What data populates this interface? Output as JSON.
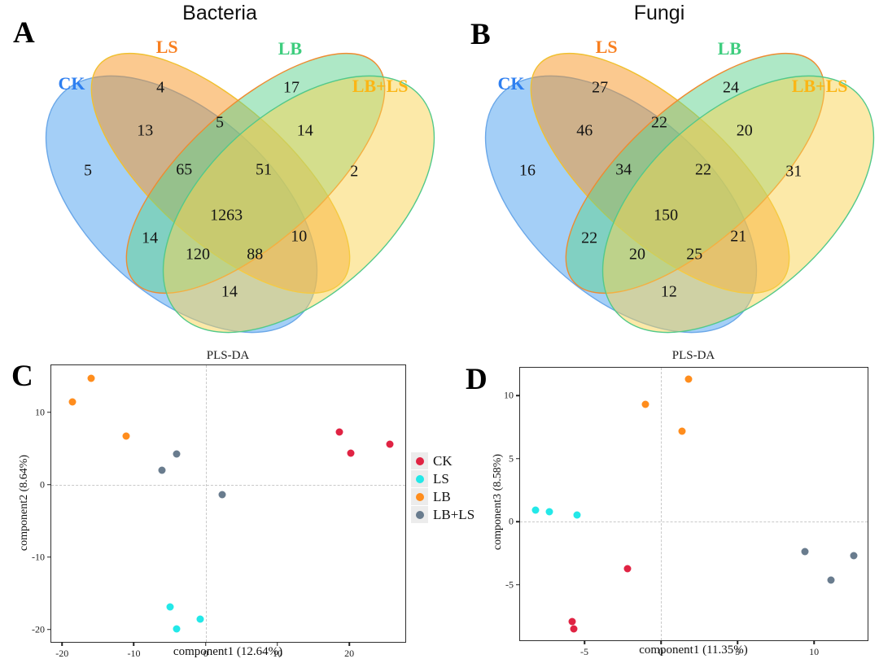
{
  "chart_data": [
    {
      "type": "venn4",
      "panel_letter": "A",
      "title": "Bacteria",
      "sets": [
        {
          "id": "ck",
          "label": "CK",
          "label_color": "#2e7ff0",
          "fill": "#4aa0ef",
          "stroke": "#6aa7e8"
        },
        {
          "id": "ls",
          "label": "LS",
          "label_color": "#f87f1f",
          "fill": "#f79320",
          "stroke": "#f0c030"
        },
        {
          "id": "lb",
          "label": "LB",
          "label_color": "#3ecd7e",
          "fill": "#5dd18d",
          "stroke": "#ef8b30"
        },
        {
          "id": "lbls",
          "label": "LB+LS",
          "label_color": "#fbb515",
          "fill": "#f9d351",
          "stroke": "#52c98a"
        }
      ],
      "regions": {
        "ck_only": 5,
        "ls_only": 4,
        "lb_only": 17,
        "lbls_only": 2,
        "ck_ls": 13,
        "ls_lb": 5,
        "lb_lbls": 14,
        "ck_lb": 14,
        "ls_lbls": 10,
        "ck_lbls": 14,
        "ck_ls_lb": 65,
        "ls_lb_lbls": 51,
        "ck_lb_lbls": 120,
        "ck_ls_lbls": 88,
        "all_four": 1263
      }
    },
    {
      "type": "venn4",
      "panel_letter": "B",
      "title": "Fungi",
      "sets": [
        {
          "id": "ck",
          "label": "CK",
          "label_color": "#2e7ff0",
          "fill": "#4aa0ef",
          "stroke": "#6aa7e8"
        },
        {
          "id": "ls",
          "label": "LS",
          "label_color": "#f87f1f",
          "fill": "#f79320",
          "stroke": "#f0c030"
        },
        {
          "id": "lb",
          "label": "LB",
          "label_color": "#3ecd7e",
          "fill": "#5dd18d",
          "stroke": "#ef8b30"
        },
        {
          "id": "lbls",
          "label": "LB+LS",
          "label_color": "#fbb515",
          "fill": "#f9d351",
          "stroke": "#52c98a"
        }
      ],
      "regions": {
        "ck_only": 16,
        "ls_only": 27,
        "lb_only": 24,
        "lbls_only": 31,
        "ck_ls": 46,
        "ls_lb": 22,
        "lb_lbls": 20,
        "ck_lb": 22,
        "ls_lbls": 21,
        "ck_lbls": 12,
        "ck_ls_lb": 34,
        "ls_lb_lbls": 22,
        "ck_lb_lbls": 20,
        "ck_ls_lbls": 25,
        "all_four": 150
      }
    },
    {
      "type": "scatter",
      "panel_letter": "C",
      "title": "PLS-DA",
      "xlabel": "component1 (12.64%)",
      "ylabel": "component2 (8.64%)",
      "xlim": [
        -21.5,
        27.8
      ],
      "ylim": [
        -21.7,
        16.5
      ],
      "xticks": [
        -20,
        -10,
        0,
        10,
        20
      ],
      "yticks": [
        -20,
        -10,
        0,
        10
      ],
      "grid": "dashed zero lines",
      "legend_position": "right",
      "series": [
        {
          "name": "CK",
          "color": "#e02343",
          "points": [
            [
              18.6,
              7.3
            ],
            [
              20.2,
              4.4
            ],
            [
              25.6,
              5.6
            ]
          ]
        },
        {
          "name": "LS",
          "color": "#23e8e8",
          "points": [
            [
              -4.9,
              -16.9
            ],
            [
              -4.1,
              -19.9
            ],
            [
              -0.8,
              -18.6
            ]
          ]
        },
        {
          "name": "LB",
          "color": "#ff8d1d",
          "points": [
            [
              -16.0,
              14.7
            ],
            [
              -18.5,
              11.4
            ],
            [
              -11.1,
              6.7
            ]
          ]
        },
        {
          "name": "LB+LS",
          "color": "#697c8e",
          "points": [
            [
              -4.1,
              4.3
            ],
            [
              -6.1,
              2.0
            ],
            [
              2.3,
              -1.4
            ]
          ]
        }
      ]
    },
    {
      "type": "scatter",
      "panel_letter": "D",
      "title": "PLS-DA",
      "xlabel": "component1 (11.35%)",
      "ylabel": "component3 (8.58%)",
      "xlim": [
        -9.2,
        13.5
      ],
      "ylim": [
        -9.4,
        12.2
      ],
      "xticks": [
        -5,
        0,
        5,
        10
      ],
      "yticks": [
        -5,
        0,
        5,
        10
      ],
      "grid": "dashed zero lines",
      "legend_position": "none",
      "series": [
        {
          "name": "CK",
          "color": "#e02343",
          "points": [
            [
              -2.2,
              -3.7
            ],
            [
              -5.8,
              -7.9
            ],
            [
              -5.7,
              -8.5
            ]
          ]
        },
        {
          "name": "LS",
          "color": "#23e8e8",
          "points": [
            [
              -8.2,
              0.9
            ],
            [
              -7.3,
              0.8
            ],
            [
              -5.5,
              0.5
            ]
          ]
        },
        {
          "name": "LB",
          "color": "#ff8d1d",
          "points": [
            [
              1.8,
              11.3
            ],
            [
              -1.0,
              9.3
            ],
            [
              1.4,
              7.2
            ]
          ]
        },
        {
          "name": "LB+LS",
          "color": "#697c8e",
          "points": [
            [
              9.4,
              -2.4
            ],
            [
              12.6,
              -2.7
            ],
            [
              11.1,
              -4.6
            ]
          ]
        }
      ]
    }
  ]
}
